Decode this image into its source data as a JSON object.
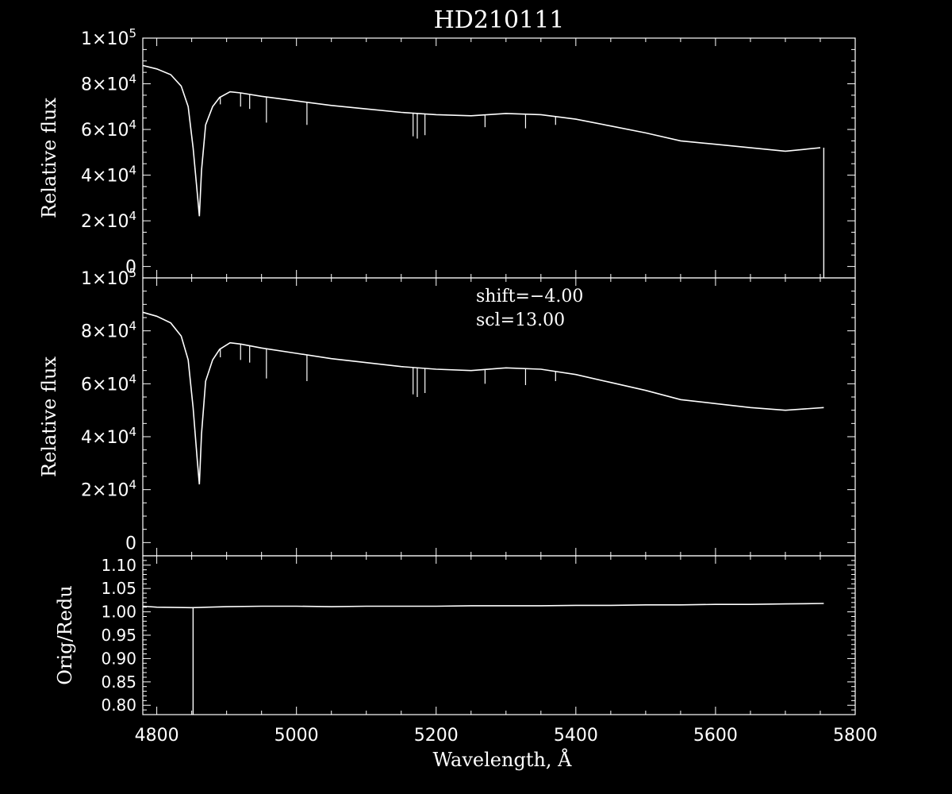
{
  "title": "HD210111",
  "x_axis_label": "Wavelength, Å",
  "annotations": {
    "shift": "shift=−4.00",
    "scl": "scl=13.00"
  },
  "colors": {
    "background": "#000000",
    "foreground": "#ffffff"
  },
  "chart_data": [
    {
      "type": "line",
      "panel": "top",
      "ylabel": "Relative flux",
      "xlim": [
        4780,
        5800
      ],
      "ylim": [
        -5000,
        100000
      ],
      "x_ticks": [
        4800,
        5000,
        5200,
        5400,
        5600,
        5800
      ],
      "y_ticks": [
        {
          "value": 0,
          "mant": "0",
          "exp": ""
        },
        {
          "value": 20000,
          "mant": "2×10",
          "exp": "4"
        },
        {
          "value": 40000,
          "mant": "4×10",
          "exp": "4"
        },
        {
          "value": 60000,
          "mant": "6×10",
          "exp": "4"
        },
        {
          "value": 80000,
          "mant": "8×10",
          "exp": "4"
        },
        {
          "value": 100000,
          "mant": "1×10",
          "exp": "5"
        }
      ],
      "x": [
        4780,
        4800,
        4820,
        4835,
        4845,
        4852,
        4858,
        4861,
        4864,
        4870,
        4880,
        4890,
        4905,
        4920,
        4950,
        5000,
        5050,
        5100,
        5150,
        5200,
        5250,
        5300,
        5350,
        5400,
        5450,
        5500,
        5550,
        5600,
        5650,
        5700,
        5750
      ],
      "y": [
        88000,
        86500,
        84000,
        79000,
        70000,
        52000,
        32000,
        22000,
        42000,
        62000,
        70000,
        74000,
        76500,
        76000,
        74500,
        72500,
        70500,
        69000,
        67500,
        66500,
        66000,
        67000,
        66500,
        64500,
        61500,
        58500,
        55000,
        53500,
        52000,
        50500,
        52000
      ],
      "absorption_lines": [
        [
          4891,
          71000
        ],
        [
          4920,
          70000
        ],
        [
          4933,
          69000
        ],
        [
          4957,
          63000
        ],
        [
          5015,
          62000
        ],
        [
          5167,
          57000
        ],
        [
          5173,
          56000
        ],
        [
          5184,
          57500
        ],
        [
          5270,
          61000
        ],
        [
          5328,
          60500
        ],
        [
          5371,
          62000
        ]
      ],
      "end_x": 5755
    },
    {
      "type": "line",
      "panel": "middle",
      "ylabel": "Relative flux",
      "xlim": [
        4780,
        5800
      ],
      "ylim": [
        -5000,
        100000
      ],
      "x_ticks": [
        4800,
        5000,
        5200,
        5400,
        5600,
        5800
      ],
      "y_ticks": [
        {
          "value": 0,
          "mant": "0",
          "exp": ""
        },
        {
          "value": 20000,
          "mant": "2×10",
          "exp": "4"
        },
        {
          "value": 40000,
          "mant": "4×10",
          "exp": "4"
        },
        {
          "value": 60000,
          "mant": "6×10",
          "exp": "4"
        },
        {
          "value": 80000,
          "mant": "8×10",
          "exp": "4"
        },
        {
          "value": 100000,
          "mant": "1×10",
          "exp": "5"
        }
      ],
      "x": [
        4780,
        4800,
        4820,
        4835,
        4845,
        4852,
        4858,
        4861,
        4864,
        4870,
        4880,
        4890,
        4905,
        4920,
        4950,
        5000,
        5050,
        5100,
        5150,
        5200,
        5250,
        5300,
        5350,
        5400,
        5450,
        5500,
        5550,
        5600,
        5650,
        5700,
        5755
      ],
      "y": [
        87000,
        85500,
        83000,
        78000,
        69000,
        51000,
        31000,
        22000,
        41000,
        61000,
        69000,
        73000,
        75500,
        75000,
        73500,
        71500,
        69500,
        68000,
        66500,
        65500,
        65000,
        66000,
        65500,
        63500,
        60500,
        57500,
        54000,
        52500,
        51000,
        50000,
        51000
      ],
      "absorption_lines": [
        [
          4891,
          70000
        ],
        [
          4920,
          69000
        ],
        [
          4933,
          68000
        ],
        [
          4957,
          62000
        ],
        [
          5015,
          61000
        ],
        [
          5167,
          56000
        ],
        [
          5173,
          55000
        ],
        [
          5184,
          56500
        ],
        [
          5270,
          60000
        ],
        [
          5328,
          59500
        ],
        [
          5371,
          61000
        ]
      ]
    },
    {
      "type": "line",
      "panel": "bottom",
      "ylabel": "Orig/Redu",
      "xlim": [
        4780,
        5800
      ],
      "ylim": [
        0.78,
        1.12
      ],
      "x_ticks": [
        4800,
        5000,
        5200,
        5400,
        5600,
        5800
      ],
      "x_tick_labels": [
        "4800",
        "5000",
        "5200",
        "5400",
        "5600",
        "5800"
      ],
      "y_ticks": [
        0.8,
        0.85,
        0.9,
        0.95,
        1.0,
        1.05,
        1.1
      ],
      "y_tick_labels": [
        "0.80",
        "0.85",
        "0.90",
        "0.95",
        "1.00",
        "1.05",
        "1.10"
      ],
      "x": [
        4780,
        4800,
        4850,
        4900,
        4950,
        5000,
        5050,
        5100,
        5150,
        5200,
        5250,
        5300,
        5350,
        5400,
        5450,
        5500,
        5550,
        5600,
        5650,
        5700,
        5755
      ],
      "y": [
        1.012,
        1.01,
        1.009,
        1.011,
        1.012,
        1.012,
        1.011,
        1.012,
        1.012,
        1.012,
        1.013,
        1.013,
        1.013,
        1.014,
        1.014,
        1.015,
        1.015,
        1.016,
        1.016,
        1.017,
        1.018
      ],
      "spike": {
        "x": 4852,
        "from": 1.009,
        "to": 0.78
      }
    }
  ]
}
